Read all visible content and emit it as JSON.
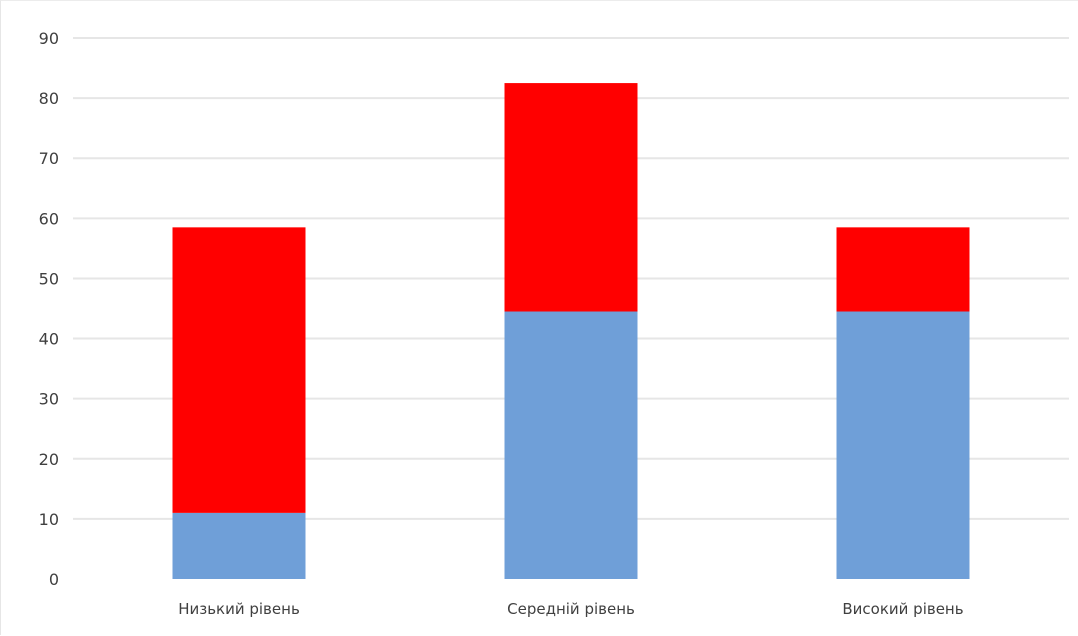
{
  "chart_data": {
    "type": "bar",
    "stacked": true,
    "title": "",
    "xlabel": "",
    "ylabel": "",
    "ylim": [
      0,
      90
    ],
    "y_ticks": [
      0,
      10,
      20,
      30,
      40,
      50,
      60,
      70,
      80,
      90
    ],
    "grid": true,
    "legend": "none",
    "categories": [
      "Низький рівень",
      "Середній рівень",
      "Високий рівень"
    ],
    "series": [
      {
        "values": [
          11,
          44.5,
          44.5
        ],
        "color": "#6f9fd8"
      },
      {
        "values": [
          47.5,
          38,
          14
        ],
        "color": "#ff0000"
      }
    ]
  }
}
